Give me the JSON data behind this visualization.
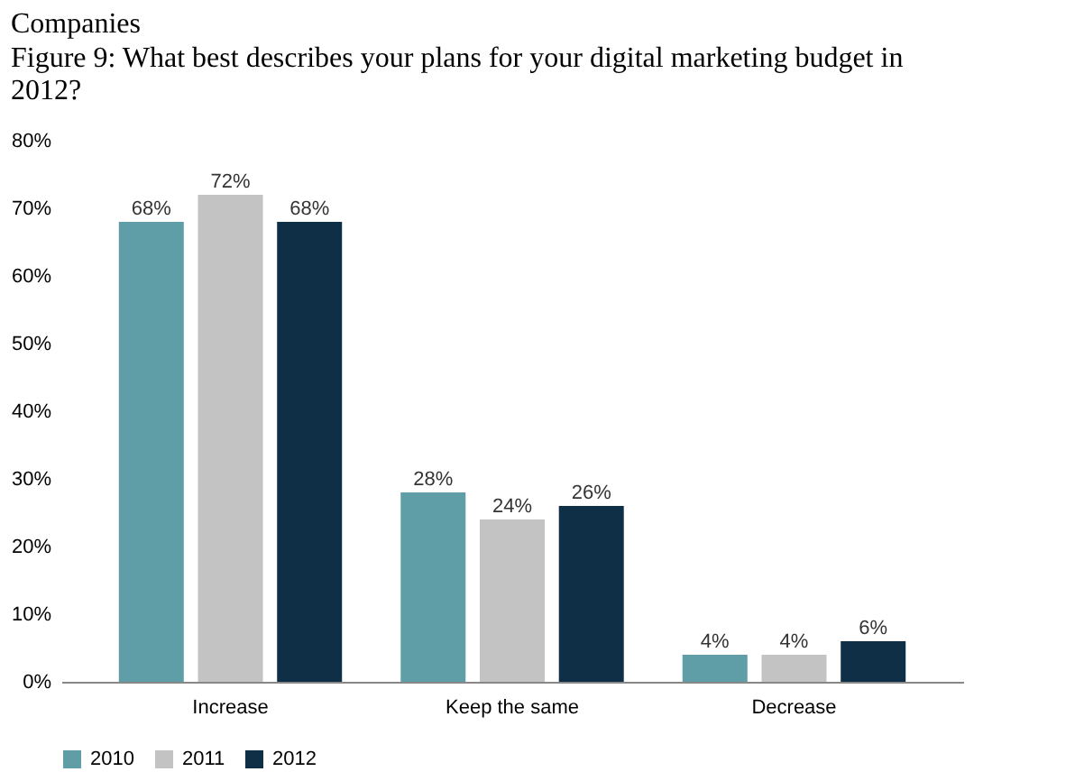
{
  "chart_data": {
    "type": "bar",
    "title": "Companies",
    "subtitle": "Figure 9: What best describes your plans for your digital marketing budget in 2012?",
    "categories": [
      "Increase",
      "Keep the same",
      "Decrease"
    ],
    "series": [
      {
        "name": "2010",
        "color": "#5f9ea6",
        "values": [
          68,
          28,
          4
        ]
      },
      {
        "name": "2011",
        "color": "#c3c3c3",
        "values": [
          72,
          24,
          4
        ]
      },
      {
        "name": "2012",
        "color": "#0e2f45",
        "values": [
          68,
          26,
          6
        ]
      }
    ],
    "ylim": [
      0,
      80
    ],
    "yticks": [
      {
        "value": 0,
        "label": "0%"
      },
      {
        "value": 10,
        "label": "10%"
      },
      {
        "value": 20,
        "label": "20%"
      },
      {
        "value": 30,
        "label": "30%"
      },
      {
        "value": 40,
        "label": "40%"
      },
      {
        "value": 50,
        "label": "50%"
      },
      {
        "value": 60,
        "label": "60%"
      },
      {
        "value": 70,
        "label": "70%"
      },
      {
        "value": 80,
        "label": "80%"
      }
    ],
    "value_labels": [
      [
        "68%",
        "28%",
        "4%"
      ],
      [
        "72%",
        "24%",
        "4%"
      ],
      [
        "68%",
        "26%",
        "6%"
      ]
    ],
    "grid": false,
    "legend": "bottom"
  }
}
